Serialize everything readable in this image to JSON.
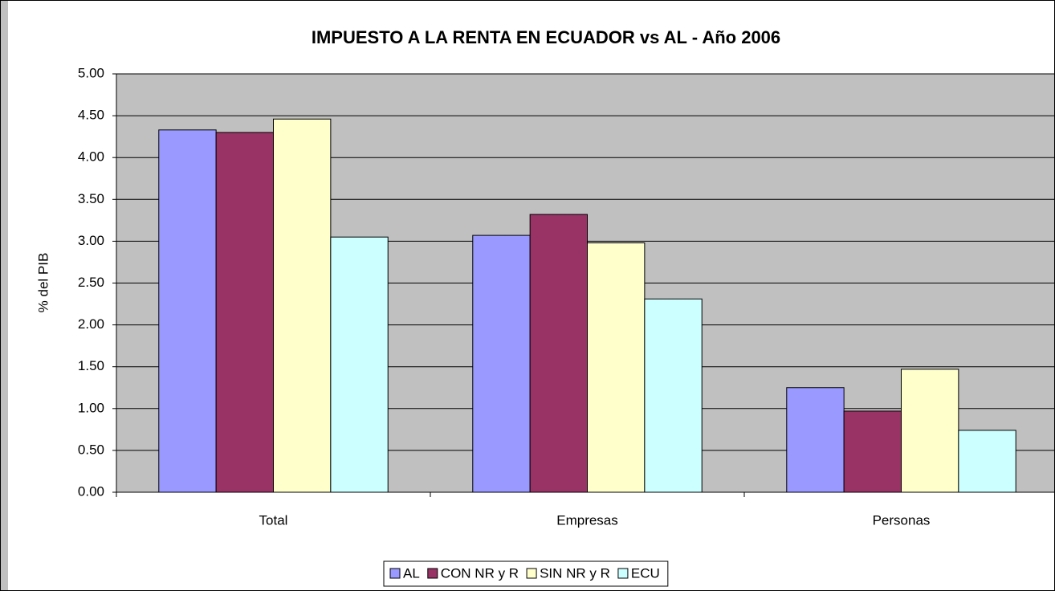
{
  "chart_data": {
    "type": "bar",
    "title": "IMPUESTO A LA RENTA EN ECUADOR vs AL - Año 2006",
    "y_label": "% del PIB",
    "categories": [
      "Total",
      "Empresas",
      "Personas"
    ],
    "series": [
      {
        "name": "AL",
        "color": "#9999ff",
        "values": [
          4.33,
          3.07,
          1.25
        ]
      },
      {
        "name": "CON NR y R",
        "color": "#993366",
        "values": [
          4.3,
          3.32,
          0.97
        ]
      },
      {
        "name": "SIN NR y R",
        "color": "#ffffcc",
        "values": [
          4.46,
          2.98,
          1.47
        ]
      },
      {
        "name": "ECU",
        "color": "#ccffff",
        "values": [
          3.05,
          2.31,
          0.74
        ]
      }
    ],
    "ylim": [
      0,
      5
    ],
    "yticks": [
      {
        "value": 0,
        "label": "0.00"
      },
      {
        "value": 0.5,
        "label": "0.50"
      },
      {
        "value": 1,
        "label": "1.00"
      },
      {
        "value": 1.5,
        "label": "1.50"
      },
      {
        "value": 2,
        "label": "2.00"
      },
      {
        "value": 2.5,
        "label": "2.50"
      },
      {
        "value": 3,
        "label": "3.00"
      },
      {
        "value": 3.5,
        "label": "3.50"
      },
      {
        "value": 4,
        "label": "4.00"
      },
      {
        "value": 4.5,
        "label": "4.50"
      },
      {
        "value": 5,
        "label": "5.00"
      }
    ],
    "grid": true,
    "legend": "bottom"
  }
}
